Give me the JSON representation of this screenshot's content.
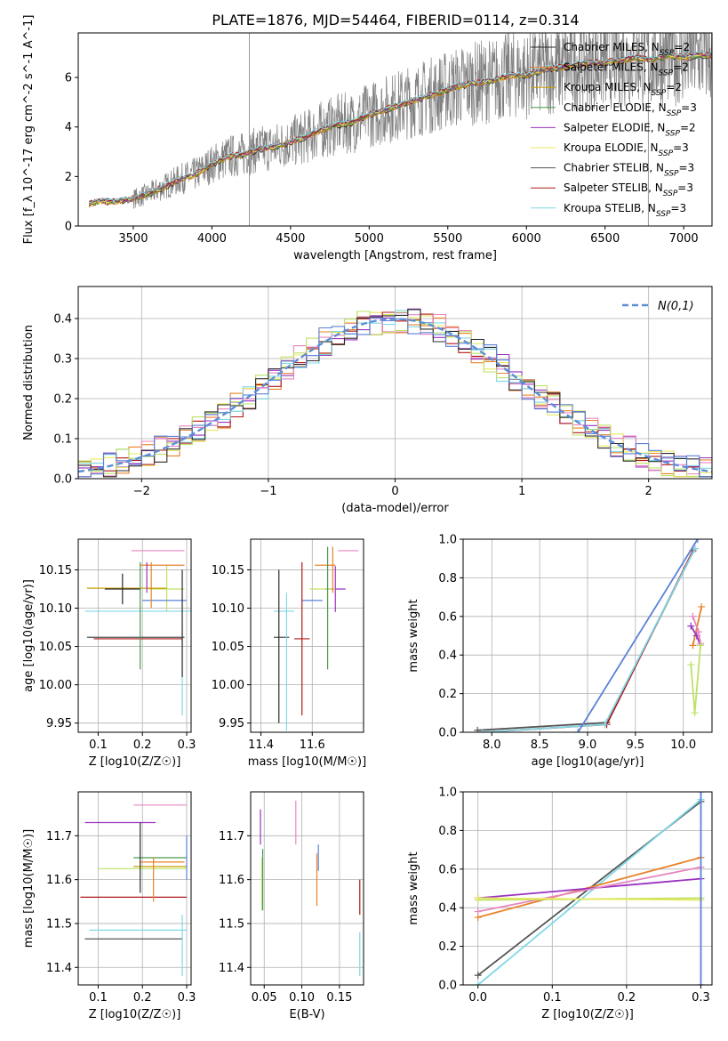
{
  "figure_title": "PLATE=1876, MJD=54464, FIBERID=0114, z=0.314",
  "colors": {
    "chabrier_miles": "#2b2b2b",
    "salpeter_miles": "#e8832a",
    "kroupa_miles": "#c8a000",
    "chabrier_elodie": "#4a9a4a",
    "salpeter_elodie": "#9932c0",
    "kroupa_elodie": "#e8e860",
    "chabrier_stelib": "#555555",
    "salpeter_stelib": "#b01818",
    "kroupa_stelib": "#7fd8e6",
    "gauss": "#5b8ed8",
    "grey": "#808080",
    "pink": "#e886c0",
    "olive": "#bde266",
    "blue": "#5b80d8"
  },
  "chart_data": [
    {
      "id": "spectrum",
      "type": "line",
      "title": "",
      "xlabel": "wavelength [Angstrom, rest frame]",
      "ylabel": "Flux [f_λ 10^-17 erg cm^-2 s^-1 A^-1]",
      "xlim": [
        3150,
        7180
      ],
      "ylim": [
        0,
        7.8
      ],
      "xticks": [
        3500,
        4000,
        4500,
        5000,
        5500,
        6000,
        6500,
        7000
      ],
      "yticks": [
        0,
        2,
        4,
        6
      ],
      "grid": false,
      "legend_position": "upper-right",
      "x": [
        3220,
        3300,
        3400,
        3500,
        3600,
        3700,
        3800,
        3900,
        4000,
        4100,
        4200,
        4300,
        4400,
        4500,
        4600,
        4700,
        4800,
        4900,
        5000,
        5100,
        5200,
        5300,
        5400,
        5500,
        5600,
        5700,
        5800,
        5900,
        6000,
        6100,
        6200,
        6300,
        6400,
        6500,
        6600,
        6700,
        6800,
        6900,
        7000,
        7100
      ],
      "model_y": [
        0.9,
        1.0,
        1.0,
        1.1,
        1.3,
        1.6,
        1.9,
        2.1,
        2.5,
        2.8,
        2.9,
        3.1,
        3.2,
        3.4,
        3.6,
        3.9,
        4.1,
        4.2,
        4.5,
        4.7,
        4.9,
        5.1,
        5.3,
        5.5,
        5.7,
        5.8,
        5.9,
        6.1,
        6.1,
        6.3,
        6.4,
        6.5,
        6.6,
        6.6,
        6.7,
        6.8,
        6.7,
        6.9,
        6.8,
        6.9
      ],
      "series": [
        {
          "name": "Chabrier MILES, N_SSP=2",
          "color_key": "chabrier_miles"
        },
        {
          "name": "Salpeter MILES, N_SSP=2",
          "color_key": "salpeter_miles"
        },
        {
          "name": "Kroupa MILES, N_SSP=2",
          "color_key": "kroupa_miles"
        },
        {
          "name": "Chabrier ELODIE, N_SSP=3",
          "color_key": "chabrier_elodie"
        },
        {
          "name": "Salpeter ELODIE, N_SSP=2",
          "color_key": "salpeter_elodie"
        },
        {
          "name": "Kroupa ELODIE, N_SSP=3",
          "color_key": "kroupa_elodie"
        },
        {
          "name": "Chabrier STELIB, N_SSP=3",
          "color_key": "chabrier_stelib"
        },
        {
          "name": "Salpeter STELIB, N_SSP=3",
          "color_key": "salpeter_stelib"
        },
        {
          "name": "Kroupa STELIB, N_SSP=3",
          "color_key": "kroupa_stelib"
        }
      ]
    },
    {
      "id": "residuals",
      "type": "line",
      "xlabel": "(data-model)/error",
      "ylabel": "Normed distribution",
      "xlim": [
        -2.5,
        2.5
      ],
      "ylim": [
        0,
        0.48
      ],
      "xticks": [
        -2,
        -1,
        0,
        1,
        2
      ],
      "yticks": [
        0.0,
        0.1,
        0.2,
        0.3,
        0.4
      ],
      "grid": true,
      "legend_position": "upper-right",
      "gauss_label": "N(0,1)",
      "hist_colors": [
        "salpeter_miles",
        "salpeter_elodie",
        "kroupa_elodie",
        "salpeter_stelib",
        "kroupa_stelib",
        "pink",
        "olive",
        "chabrier_miles",
        "blue"
      ]
    },
    {
      "id": "age_vs_Z",
      "type": "scatter",
      "xlabel": "Z [log10(Z/Z☉)]",
      "ylabel": "age  [log10(age/yr)]",
      "xlim": [
        0.055,
        0.31
      ],
      "ylim": [
        9.938,
        10.19
      ],
      "xticks": [
        0.1,
        0.2,
        0.3
      ],
      "yticks": [
        9.95,
        10.0,
        10.05,
        10.1,
        10.15
      ],
      "grid": true,
      "points": [
        {
          "x": 0.235,
          "y": 10.175,
          "xe": 0.06,
          "ye": 0.0,
          "c": "pink"
        },
        {
          "x": 0.245,
          "y": 10.156,
          "xe": 0.05,
          "ye": 0.0,
          "c": "salpeter_miles"
        },
        {
          "x": 0.255,
          "y": 10.125,
          "xe": 0.04,
          "ye": 0.03,
          "c": "olive"
        },
        {
          "x": 0.165,
          "y": 10.126,
          "xe": 0.09,
          "ye": 0.0,
          "c": "kroupa_miles"
        },
        {
          "x": 0.155,
          "y": 10.125,
          "xe": 0.04,
          "ye": 0.02,
          "c": "chabrier_miles"
        },
        {
          "x": 0.25,
          "y": 10.11,
          "xe": 0.05,
          "ye": 0.0,
          "c": "blue"
        },
        {
          "x": 0.19,
          "y": 10.096,
          "xe": 0.12,
          "ye": 0.0,
          "c": "kroupa_stelib"
        },
        {
          "x": 0.185,
          "y": 10.062,
          "xe": 0.11,
          "ye": 0.0,
          "c": "chabrier_stelib"
        },
        {
          "x": 0.19,
          "y": 10.06,
          "xe": 0.1,
          "ye": 0.0,
          "c": "salpeter_stelib"
        },
        {
          "x": 0.195,
          "y": 10.09,
          "xe": 0.0,
          "ye": 0.07,
          "c": "chabrier_elodie"
        },
        {
          "x": 0.29,
          "y": 10.02,
          "xe": 0.0,
          "ye": 0.06,
          "c": "kroupa_stelib"
        },
        {
          "x": 0.29,
          "y": 10.08,
          "xe": 0.0,
          "ye": 0.07,
          "c": "chabrier_miles"
        },
        {
          "x": 0.22,
          "y": 10.13,
          "xe": 0.0,
          "ye": 0.03,
          "c": "salpeter_miles"
        },
        {
          "x": 0.21,
          "y": 10.14,
          "xe": 0.0,
          "ye": 0.02,
          "c": "salpeter_elodie"
        }
      ]
    },
    {
      "id": "age_vs_mass",
      "type": "scatter",
      "xlabel": "mass [log10(M/M☉)]",
      "ylabel": "",
      "xlim": [
        11.36,
        11.8
      ],
      "ylim": [
        9.938,
        10.19
      ],
      "xticks": [
        11.4,
        11.6
      ],
      "yticks": [
        9.95,
        10.0,
        10.05,
        10.1,
        10.15
      ],
      "grid": true,
      "points": [
        {
          "x": 11.74,
          "y": 10.175,
          "xe": 0.04,
          "ye": 0.0,
          "c": "pink"
        },
        {
          "x": 11.65,
          "y": 10.156,
          "xe": 0.04,
          "ye": 0.0,
          "c": "salpeter_miles"
        },
        {
          "x": 11.69,
          "y": 10.125,
          "xe": 0.04,
          "ye": 0.03,
          "c": "salpeter_elodie"
        },
        {
          "x": 11.64,
          "y": 10.125,
          "xe": 0.05,
          "ye": 0.0,
          "c": "olive"
        },
        {
          "x": 11.6,
          "y": 10.11,
          "xe": 0.04,
          "ye": 0.0,
          "c": "blue"
        },
        {
          "x": 11.49,
          "y": 10.096,
          "xe": 0.04,
          "ye": 0.0,
          "c": "kroupa_stelib"
        },
        {
          "x": 11.48,
          "y": 10.062,
          "xe": 0.03,
          "ye": 0.0,
          "c": "chabrier_stelib"
        },
        {
          "x": 11.56,
          "y": 10.06,
          "xe": 0.03,
          "ye": 0.1,
          "c": "salpeter_stelib"
        },
        {
          "x": 11.47,
          "y": 10.05,
          "xe": 0.0,
          "ye": 0.1,
          "c": "chabrier_miles"
        },
        {
          "x": 11.5,
          "y": 10.03,
          "xe": 0.0,
          "ye": 0.09,
          "c": "kroupa_stelib"
        },
        {
          "x": 11.66,
          "y": 10.1,
          "xe": 0.0,
          "ye": 0.08,
          "c": "chabrier_elodie"
        },
        {
          "x": 11.68,
          "y": 10.15,
          "xe": 0.0,
          "ye": 0.03,
          "c": "salpeter_miles"
        }
      ]
    },
    {
      "id": "mass_weight_vs_age",
      "type": "line",
      "xlabel": "age  [log10(age/yr)]",
      "ylabel": "mass weight",
      "xlim": [
        7.7,
        10.3
      ],
      "ylim": [
        0,
        1.0
      ],
      "xticks": [
        8.0,
        8.5,
        9.0,
        9.5,
        10.0
      ],
      "yticks": [
        0.0,
        0.2,
        0.4,
        0.6,
        0.8,
        1.0
      ],
      "grid": true,
      "lines": [
        {
          "x": [
            7.85,
            9.2,
            10.12
          ],
          "y": [
            0.01,
            0.05,
            0.95
          ],
          "c": "chabrier_stelib"
        },
        {
          "x": [
            7.9,
            9.2,
            10.1
          ],
          "y": [
            0.0,
            0.04,
            0.94
          ],
          "c": "salpeter_stelib"
        },
        {
          "x": [
            7.9,
            9.18,
            10.12
          ],
          "y": [
            0.0,
            0.04,
            0.95
          ],
          "c": "kroupa_stelib"
        },
        {
          "x": [
            8.9,
            10.15
          ],
          "y": [
            0.0,
            1.0
          ],
          "c": "blue"
        },
        {
          "x": [
            10.1,
            10.19
          ],
          "y": [
            0.45,
            0.65
          ],
          "c": "salpeter_miles"
        },
        {
          "x": [
            10.08,
            10.14,
            10.18
          ],
          "y": [
            0.55,
            0.5,
            0.45
          ],
          "c": "salpeter_elodie"
        },
        {
          "x": [
            10.1,
            10.16,
            10.18
          ],
          "y": [
            0.6,
            0.52,
            0.46
          ],
          "c": "pink"
        },
        {
          "x": [
            10.08,
            10.12,
            10.18
          ],
          "y": [
            0.35,
            0.1,
            0.45
          ],
          "c": "olive"
        }
      ]
    },
    {
      "id": "mass_vs_Z",
      "type": "scatter",
      "xlabel": "Z [log10(Z/Z☉)]",
      "ylabel": "mass [log10(M/M☉)]",
      "xlim": [
        0.055,
        0.31
      ],
      "ylim": [
        11.36,
        11.8
      ],
      "xticks": [
        0.1,
        0.2,
        0.3
      ],
      "yticks": [
        11.4,
        11.5,
        11.6,
        11.7
      ],
      "grid": true,
      "points": [
        {
          "x": 0.24,
          "y": 11.77,
          "xe": 0.06,
          "ye": 0.0,
          "c": "pink"
        },
        {
          "x": 0.15,
          "y": 11.73,
          "xe": 0.08,
          "ye": 0.0,
          "c": "salpeter_elodie"
        },
        {
          "x": 0.24,
          "y": 11.65,
          "xe": 0.06,
          "ye": 0.0,
          "c": "chabrier_elodie"
        },
        {
          "x": 0.245,
          "y": 11.64,
          "xe": 0.05,
          "ye": 0.0,
          "c": "salpeter_miles"
        },
        {
          "x": 0.2,
          "y": 11.625,
          "xe": 0.1,
          "ye": 0.0,
          "c": "olive"
        },
        {
          "x": 0.24,
          "y": 11.63,
          "xe": 0.06,
          "ye": 0.0,
          "c": "kroupa_miles"
        },
        {
          "x": 0.18,
          "y": 11.56,
          "xe": 0.12,
          "ye": 0.0,
          "c": "salpeter_stelib"
        },
        {
          "x": 0.19,
          "y": 11.485,
          "xe": 0.11,
          "ye": 0.0,
          "c": "kroupa_stelib"
        },
        {
          "x": 0.18,
          "y": 11.465,
          "xe": 0.11,
          "ye": 0.0,
          "c": "chabrier_stelib"
        },
        {
          "x": 0.195,
          "y": 11.65,
          "xe": 0.0,
          "ye": 0.08,
          "c": "chabrier_miles"
        },
        {
          "x": 0.225,
          "y": 11.6,
          "xe": 0.0,
          "ye": 0.05,
          "c": "salpeter_miles"
        },
        {
          "x": 0.29,
          "y": 11.45,
          "xe": 0.0,
          "ye": 0.07,
          "c": "kroupa_stelib"
        },
        {
          "x": 0.3,
          "y": 11.65,
          "xe": 0.0,
          "ye": 0.05,
          "c": "blue"
        }
      ]
    },
    {
      "id": "mass_vs_ebv",
      "type": "scatter",
      "xlabel": "E(B-V)",
      "ylabel": "",
      "xlim": [
        0.032,
        0.182
      ],
      "ylim": [
        11.36,
        11.8
      ],
      "xticks": [
        0.05,
        0.1,
        0.15
      ],
      "yticks": [
        11.4,
        11.5,
        11.6,
        11.7
      ],
      "grid": true,
      "points": [
        {
          "x": 0.045,
          "y": 11.72,
          "xe": 0.0,
          "ye": 0.04,
          "c": "salpeter_elodie"
        },
        {
          "x": 0.047,
          "y": 11.59,
          "xe": 0.0,
          "ye": 0.06,
          "c": "olive"
        },
        {
          "x": 0.048,
          "y": 11.6,
          "xe": 0.0,
          "ye": 0.07,
          "c": "chabrier_elodie"
        },
        {
          "x": 0.092,
          "y": 11.73,
          "xe": 0.0,
          "ye": 0.05,
          "c": "pink"
        },
        {
          "x": 0.12,
          "y": 11.6,
          "xe": 0.0,
          "ye": 0.06,
          "c": "salpeter_miles"
        },
        {
          "x": 0.122,
          "y": 11.65,
          "xe": 0.0,
          "ye": 0.03,
          "c": "blue"
        },
        {
          "x": 0.177,
          "y": 11.56,
          "xe": 0.0,
          "ye": 0.04,
          "c": "salpeter_stelib"
        },
        {
          "x": 0.177,
          "y": 11.43,
          "xe": 0.0,
          "ye": 0.05,
          "c": "kroupa_stelib"
        }
      ]
    },
    {
      "id": "mass_weight_vs_Z",
      "type": "line",
      "xlabel": "Z [log10(Z/Z☉)]",
      "ylabel": "mass weight",
      "xlim": [
        -0.02,
        0.315
      ],
      "ylim": [
        0,
        1.0
      ],
      "xticks": [
        0.0,
        0.1,
        0.2,
        0.3
      ],
      "yticks": [
        0.0,
        0.2,
        0.4,
        0.6,
        0.8,
        1.0
      ],
      "grid": true,
      "lines": [
        {
          "x": [
            0.0,
            0.3
          ],
          "y": [
            0.05,
            0.95
          ],
          "c": "chabrier_stelib"
        },
        {
          "x": [
            0.0,
            0.3
          ],
          "y": [
            0.0,
            0.96
          ],
          "c": "kroupa_stelib"
        },
        {
          "x": [
            0.0,
            0.3
          ],
          "y": [
            0.35,
            0.66
          ],
          "c": "salpeter_miles"
        },
        {
          "x": [
            0.0,
            0.3
          ],
          "y": [
            0.45,
            0.55
          ],
          "c": "salpeter_elodie"
        },
        {
          "x": [
            0.0,
            0.3
          ],
          "y": [
            0.38,
            0.61
          ],
          "c": "pink"
        },
        {
          "x": [
            0.0,
            0.3
          ],
          "y": [
            0.44,
            0.45
          ],
          "c": "olive"
        },
        {
          "x": [
            0.0,
            0.3
          ],
          "y": [
            0.45,
            0.44
          ],
          "c": "kroupa_elodie"
        },
        {
          "x": [
            0.3,
            0.3
          ],
          "y": [
            0.0,
            1.0
          ],
          "c": "blue"
        }
      ]
    }
  ]
}
